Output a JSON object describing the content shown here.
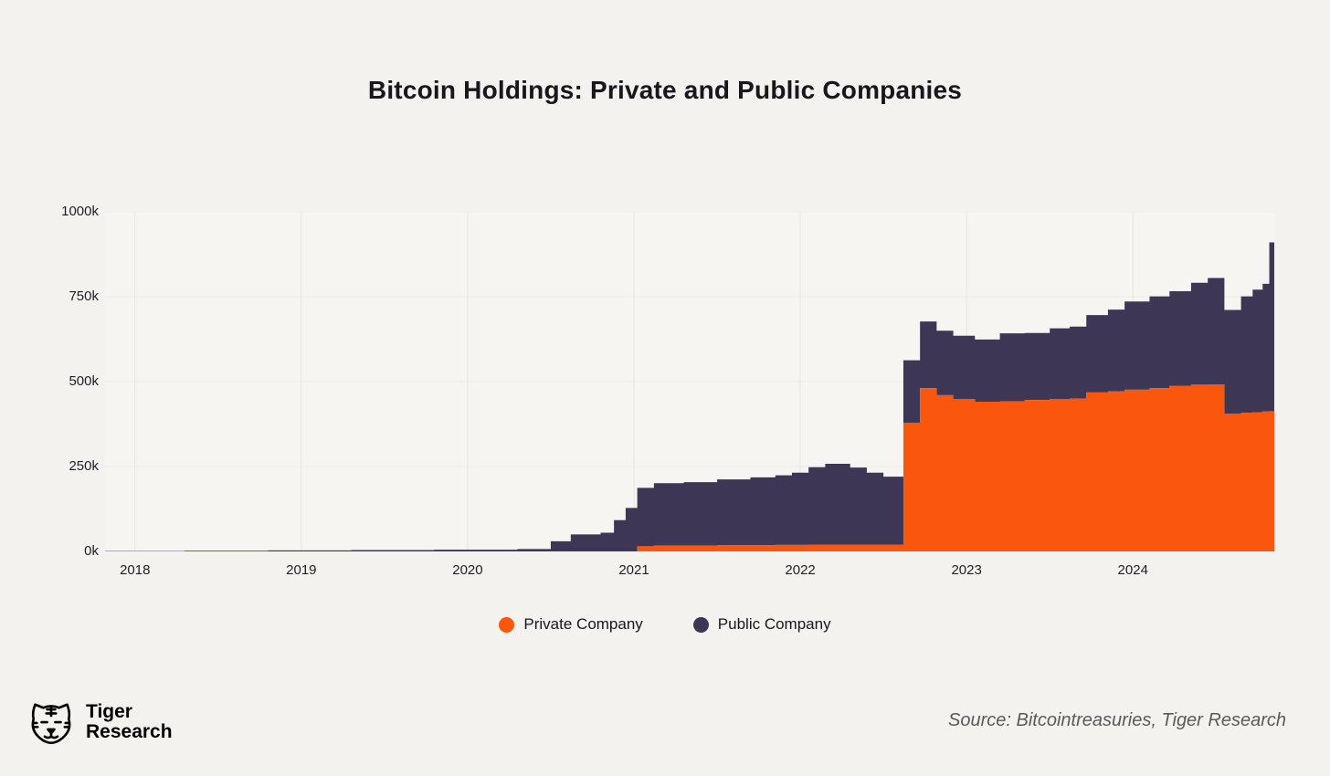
{
  "colors": {
    "background": "#F4F2EF",
    "plot_background": "#F7F5F2",
    "grid": "#E8E5E0",
    "title_text": "#17171C",
    "axis_text": "#1E1E24",
    "source_text": "#5A5A5A",
    "private": "#FA560D",
    "public": "#3D3655"
  },
  "footer": {
    "brand_line1": "Tiger",
    "brand_line2": "Research",
    "source": "Source: Bitcointreasuries, Tiger Research"
  },
  "chart_data": {
    "type": "area",
    "stacked": true,
    "step": true,
    "title": "Bitcoin Holdings: Private and Public Companies",
    "xlabel": "",
    "ylabel": "",
    "xlim": [
      2017.82,
      2024.85
    ],
    "ylim": [
      0,
      1000
    ],
    "x_ticks": [
      2018,
      2019,
      2020,
      2021,
      2022,
      2023,
      2024
    ],
    "y_ticks": [
      {
        "value": 0,
        "label": "0k"
      },
      {
        "value": 250,
        "label": "250k"
      },
      {
        "value": 500,
        "label": "500k"
      },
      {
        "value": 750,
        "label": "750k"
      },
      {
        "value": 1000,
        "label": "1000k"
      }
    ],
    "y_unit": "k",
    "grid": "vertical",
    "legend_position": "bottom",
    "x": [
      2017.82,
      2018.3,
      2018.8,
      2019.3,
      2019.8,
      2020.3,
      2020.5,
      2020.62,
      2020.8,
      2020.88,
      2020.95,
      2021.02,
      2021.12,
      2021.3,
      2021.5,
      2021.7,
      2021.85,
      2021.95,
      2022.05,
      2022.15,
      2022.3,
      2022.4,
      2022.5,
      2022.62,
      2022.72,
      2022.82,
      2022.92,
      2023.05,
      2023.2,
      2023.35,
      2023.5,
      2023.62,
      2023.72,
      2023.85,
      2023.95,
      2024.1,
      2024.22,
      2024.35,
      2024.45,
      2024.55,
      2024.65,
      2024.72,
      2024.78,
      2024.82
    ],
    "series": [
      {
        "name": "Private Company",
        "color": "#FA560D",
        "values": [
          0,
          0,
          0,
          0,
          0,
          0,
          0,
          0,
          0,
          0,
          0,
          15,
          17,
          17,
          18,
          18,
          19,
          19,
          20,
          20,
          20,
          20,
          20,
          379,
          481,
          460,
          449,
          441,
          442,
          446,
          449,
          450,
          468,
          471,
          476,
          481,
          488,
          491,
          492,
          406,
          408,
          410,
          412,
          413
        ]
      },
      {
        "name": "Public Company",
        "color": "#3D3655",
        "values": [
          1,
          2,
          3,
          4,
          5,
          7,
          30,
          50,
          55,
          92,
          128,
          172,
          184,
          187,
          194,
          200,
          205,
          213,
          228,
          238,
          227,
          212,
          200,
          184,
          196,
          190,
          186,
          183,
          200,
          197,
          208,
          212,
          228,
          241,
          260,
          270,
          278,
          300,
          313,
          305,
          343,
          361,
          376,
          497
        ]
      }
    ]
  }
}
